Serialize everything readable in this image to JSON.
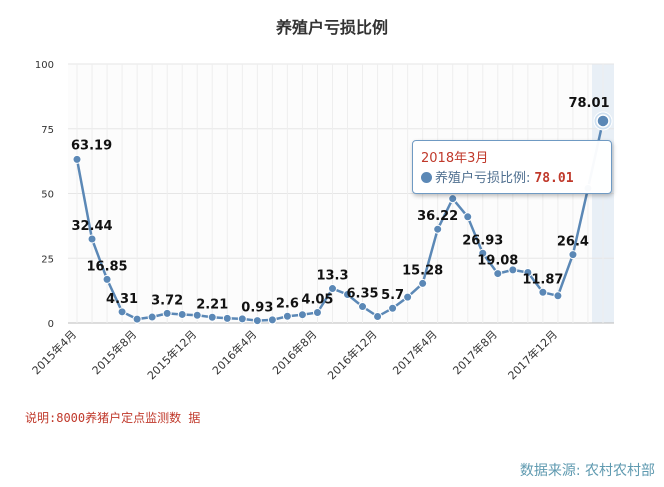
{
  "chart_data": {
    "type": "line",
    "title": "养殖户亏损比例",
    "series_name": "养殖户亏损比例",
    "ylim": [
      0,
      100
    ],
    "yticks": [
      0,
      25,
      50,
      75,
      100
    ],
    "x_tick_labels": [
      "2015年4月",
      "2015年8月",
      "2015年12月",
      "2016年4月",
      "2016年8月",
      "2016年12月",
      "2017年4月",
      "2017年8月",
      "2017年12月"
    ],
    "x": [
      "2015年4月",
      "2015年5月",
      "2015年6月",
      "2015年7月",
      "2015年8月",
      "2015年9月",
      "2015年10月",
      "2015年11月",
      "2015年12月",
      "2016年1月",
      "2016年2月",
      "2016年3月",
      "2016年4月",
      "2016年5月",
      "2016年6月",
      "2016年7月",
      "2016年8月",
      "2016年9月",
      "2016年10月",
      "2016年11月",
      "2016年12月",
      "2017年1月",
      "2017年2月",
      "2017年3月",
      "2017年4月",
      "2017年5月",
      "2017年6月",
      "2017年7月",
      "2017年8月",
      "2017年9月",
      "2017年10月",
      "2017年11月",
      "2017年12月",
      "2018年1月",
      "2018年2月",
      "2018年3月"
    ],
    "values": [
      63.19,
      32.44,
      16.85,
      4.31,
      1.5,
      2.3,
      3.72,
      3.3,
      3.0,
      2.21,
      1.8,
      1.6,
      0.93,
      1.2,
      2.6,
      3.2,
      4.05,
      13.3,
      11.0,
      6.35,
      2.5,
      5.7,
      10.0,
      15.28,
      36.22,
      48.0,
      41.0,
      26.93,
      19.08,
      20.5,
      19.5,
      11.87,
      10.5,
      26.4,
      52.0,
      78.01
    ],
    "data_labels": [
      {
        "i": 0,
        "text": "63.19"
      },
      {
        "i": 1,
        "text": "32.44"
      },
      {
        "i": 2,
        "text": "16.85"
      },
      {
        "i": 3,
        "text": "4.31"
      },
      {
        "i": 6,
        "text": "3.72"
      },
      {
        "i": 9,
        "text": "2.21"
      },
      {
        "i": 12,
        "text": "0.93"
      },
      {
        "i": 14,
        "text": "2.6"
      },
      {
        "i": 16,
        "text": "4.05"
      },
      {
        "i": 17,
        "text": "13.3"
      },
      {
        "i": 19,
        "text": "6.35"
      },
      {
        "i": 21,
        "text": "5.7"
      },
      {
        "i": 23,
        "text": "15.28"
      },
      {
        "i": 24,
        "text": "36.22"
      },
      {
        "i": 27,
        "text": "26.93"
      },
      {
        "i": 28,
        "text": "19.08"
      },
      {
        "i": 31,
        "text": "11.87"
      },
      {
        "i": 33,
        "text": "26.4"
      },
      {
        "i": 35,
        "text": "78.01"
      }
    ],
    "grid": true,
    "line_color": "#5b88b6"
  },
  "tooltip": {
    "title": "2018年3月",
    "series_label": "养殖户亏损比例:",
    "value": "78.01"
  },
  "note": "说明:8000养猪户定点监测数 据",
  "source": "数据来源: 农村农村部"
}
